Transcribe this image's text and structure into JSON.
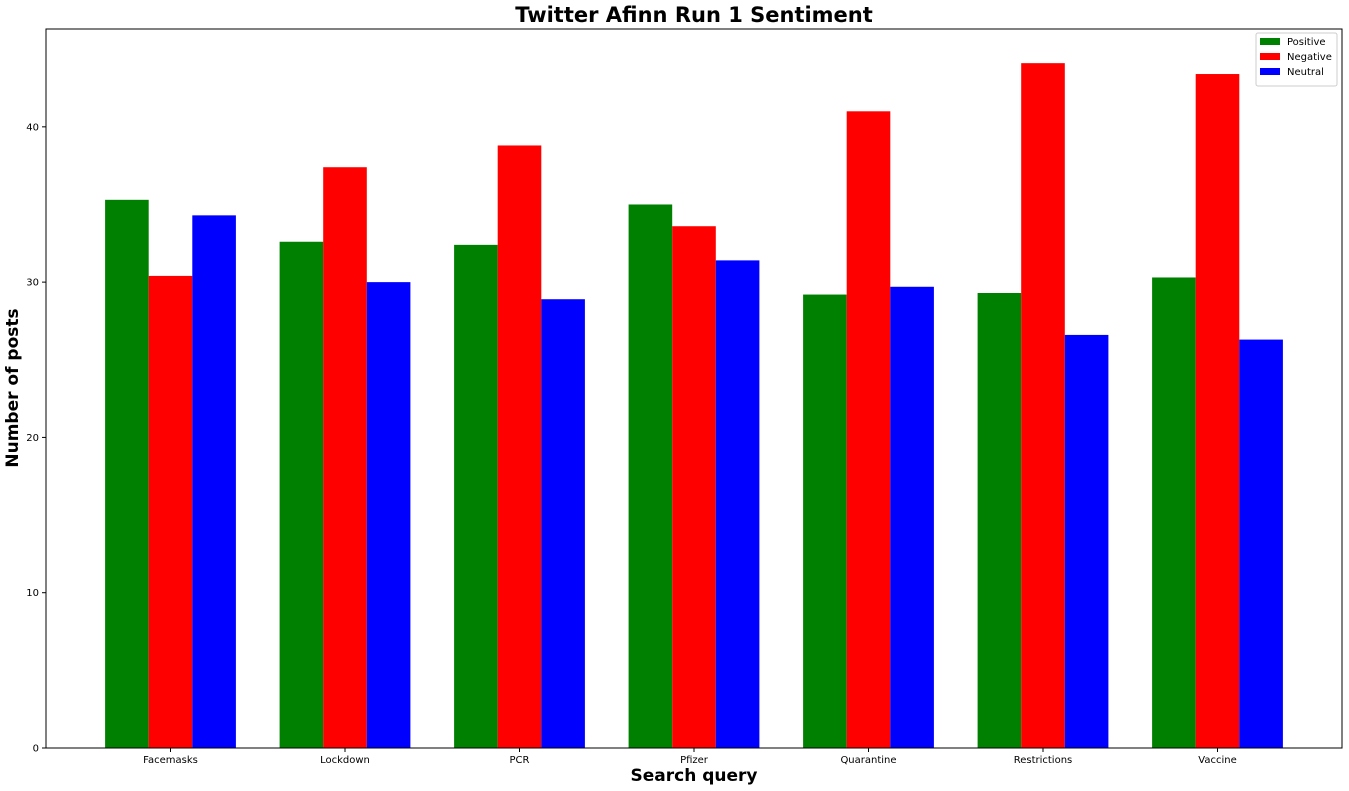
{
  "chart_data": {
    "type": "bar",
    "title": "Twitter Afinn Run 1 Sentiment",
    "xlabel": "Search query",
    "ylabel": "Number of posts",
    "categories": [
      "Facemasks",
      "Lockdown",
      "PCR",
      "Pfizer",
      "Quarantine",
      "Restrictions",
      "Vaccine"
    ],
    "series": [
      {
        "name": "Positive",
        "color": "#008000",
        "values": [
          35.3,
          32.6,
          32.4,
          35.0,
          29.2,
          29.3,
          30.3
        ]
      },
      {
        "name": "Negative",
        "color": "#ff0000",
        "values": [
          30.4,
          37.4,
          38.8,
          33.6,
          41.0,
          44.1,
          43.4
        ]
      },
      {
        "name": "Neutral",
        "color": "#0000ff",
        "values": [
          34.3,
          30.0,
          28.9,
          31.4,
          29.7,
          26.6,
          26.3
        ]
      }
    ],
    "ylim": [
      0,
      46.3
    ],
    "yticks": [
      0,
      10,
      20,
      30,
      40
    ],
    "grid": false,
    "legend": "top-right"
  }
}
